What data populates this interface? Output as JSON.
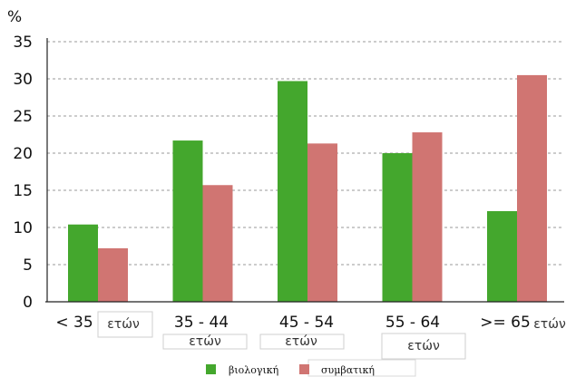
{
  "chart_data": {
    "type": "bar",
    "y_unit": "%",
    "categories": [
      "< 35",
      "35 - 44",
      "45 - 54",
      "55 - 64",
      ">= 65"
    ],
    "category_sublabels": [
      "ετών",
      "ετών",
      "ετών",
      "ετών",
      "ετών"
    ],
    "series": [
      {
        "name": "βιολογική",
        "values": [
          10.4,
          21.7,
          29.7,
          20.0,
          12.2
        ]
      },
      {
        "name": "συμβατική",
        "values": [
          7.2,
          15.7,
          21.3,
          22.8,
          30.5
        ]
      }
    ],
    "ylim": [
      0,
      35
    ],
    "yticks": [
      0,
      5,
      10,
      15,
      20,
      25,
      30,
      35
    ],
    "grid": "horizontal-dashed",
    "legend": "bottom",
    "colors": {
      "series_1": "#44a72d",
      "series_2": "#d07572"
    }
  }
}
